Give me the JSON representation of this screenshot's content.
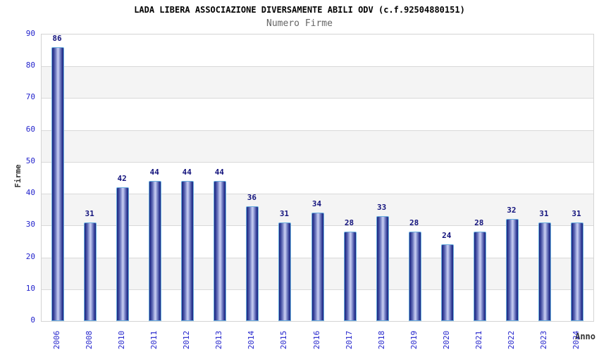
{
  "chart_data": {
    "type": "bar",
    "title": "LADA LIBERA ASSOCIAZIONE DIVERSAMENTE ABILI ODV (c.f.92504880151)",
    "subtitle": "Numero Firme",
    "xlabel": "Anno",
    "ylabel": "Firme",
    "categories": [
      "2006",
      "2008",
      "2010",
      "2011",
      "2012",
      "2013",
      "2014",
      "2015",
      "2016",
      "2017",
      "2018",
      "2019",
      "2020",
      "2021",
      "2022",
      "2023",
      "2024"
    ],
    "values": [
      86,
      31,
      42,
      44,
      44,
      44,
      36,
      31,
      34,
      28,
      33,
      28,
      24,
      28,
      32,
      31,
      31
    ],
    "ylim": [
      0,
      90
    ],
    "ytick_step": 10,
    "grid": "horizontal-every-10",
    "bands": "alternating gray between 10-20, 30-40, 50-60, 70-80",
    "legend": "none",
    "colors": {
      "background": "#ffffff",
      "title": "#000000",
      "subtitle": "#666666",
      "tick_label": "#2323cc",
      "value_label": "#13137d",
      "axis_label": "#333333",
      "gridline": "#d9d9d9",
      "frame": "#d4d4d4",
      "band": "#f4f4f4",
      "bar_edge": "#1f2a80",
      "bar_center": "#c9cff2",
      "bar_border": "#6aaede"
    }
  }
}
